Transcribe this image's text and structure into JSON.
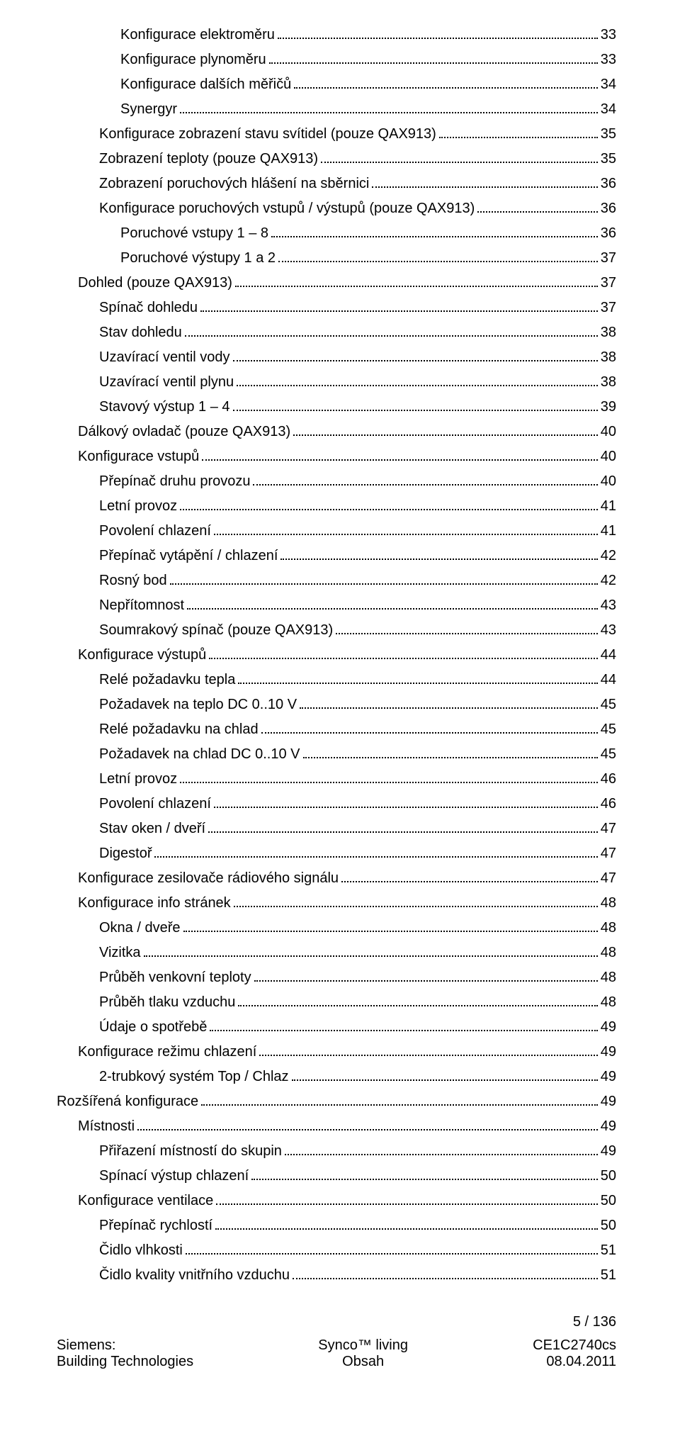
{
  "toc": [
    {
      "label": "Konfigurace elektroměru",
      "page": "33",
      "indent": 3
    },
    {
      "label": "Konfigurace plynoměru",
      "page": "33",
      "indent": 3
    },
    {
      "label": "Konfigurace dalších měřičů",
      "page": "34",
      "indent": 3
    },
    {
      "label": "Synergyr",
      "page": "34",
      "indent": 3
    },
    {
      "label": "Konfigurace zobrazení stavu svítidel (pouze QAX913)",
      "page": "35",
      "indent": 2
    },
    {
      "label": "Zobrazení teploty (pouze QAX913)",
      "page": "35",
      "indent": 2
    },
    {
      "label": "Zobrazení poruchových hlášení na sběrnici",
      "page": "36",
      "indent": 2
    },
    {
      "label": "Konfigurace poruchových vstupů / výstupů (pouze QAX913)",
      "page": "36",
      "indent": 2
    },
    {
      "label": "Poruchové vstupy 1 – 8",
      "page": "36",
      "indent": 3
    },
    {
      "label": "Poruchové výstupy 1 a 2",
      "page": "37",
      "indent": 3
    },
    {
      "label": "Dohled (pouze QAX913)",
      "page": "37",
      "indent": 1
    },
    {
      "label": "Spínač dohledu",
      "page": "37",
      "indent": 2
    },
    {
      "label": "Stav dohledu",
      "page": "38",
      "indent": 2
    },
    {
      "label": "Uzavírací ventil vody",
      "page": "38",
      "indent": 2
    },
    {
      "label": "Uzavírací ventil plynu",
      "page": "38",
      "indent": 2
    },
    {
      "label": "Stavový výstup 1 – 4",
      "page": "39",
      "indent": 2
    },
    {
      "label": "Dálkový ovladač (pouze QAX913)",
      "page": "40",
      "indent": 1
    },
    {
      "label": "Konfigurace vstupů",
      "page": "40",
      "indent": 1
    },
    {
      "label": "Přepínač druhu provozu",
      "page": "40",
      "indent": 2
    },
    {
      "label": "Letní provoz",
      "page": "41",
      "indent": 2
    },
    {
      "label": "Povolení chlazení",
      "page": "41",
      "indent": 2
    },
    {
      "label": "Přepínač vytápění / chlazení",
      "page": "42",
      "indent": 2
    },
    {
      "label": "Rosný bod",
      "page": "42",
      "indent": 2
    },
    {
      "label": "Nepřítomnost",
      "page": "43",
      "indent": 2
    },
    {
      "label": "Soumrakový spínač (pouze QAX913)",
      "page": "43",
      "indent": 2
    },
    {
      "label": "Konfigurace výstupů",
      "page": "44",
      "indent": 1
    },
    {
      "label": "Relé požadavku tepla",
      "page": "44",
      "indent": 2
    },
    {
      "label": "Požadavek na teplo DC 0..10 V",
      "page": "45",
      "indent": 2
    },
    {
      "label": "Relé požadavku na chlad",
      "page": "45",
      "indent": 2
    },
    {
      "label": "Požadavek na chlad DC 0..10 V",
      "page": "45",
      "indent": 2
    },
    {
      "label": "Letní provoz",
      "page": "46",
      "indent": 2
    },
    {
      "label": "Povolení chlazení",
      "page": "46",
      "indent": 2
    },
    {
      "label": "Stav oken / dveří",
      "page": "47",
      "indent": 2
    },
    {
      "label": "Digestoř",
      "page": "47",
      "indent": 2
    },
    {
      "label": "Konfigurace zesilovače rádiového signálu",
      "page": "47",
      "indent": 1
    },
    {
      "label": "Konfigurace info stránek",
      "page": "48",
      "indent": 1
    },
    {
      "label": "Okna / dveře",
      "page": "48",
      "indent": 2
    },
    {
      "label": "Vizitka",
      "page": "48",
      "indent": 2
    },
    {
      "label": "Průběh venkovní teploty",
      "page": "48",
      "indent": 2
    },
    {
      "label": "Průběh tlaku vzduchu",
      "page": "48",
      "indent": 2
    },
    {
      "label": "Údaje o spotřebě",
      "page": "49",
      "indent": 2
    },
    {
      "label": "Konfigurace režimu chlazení",
      "page": "49",
      "indent": 1
    },
    {
      "label": "2-trubkový systém Top / Chlaz",
      "page": "49",
      "indent": 2
    },
    {
      "label": "Rozšířená konfigurace",
      "page": "49",
      "indent": 0
    },
    {
      "label": "Místnosti",
      "page": "49",
      "indent": 1
    },
    {
      "label": "Přiřazení místností do skupin",
      "page": "49",
      "indent": 2
    },
    {
      "label": "Spínací výstup chlazení",
      "page": "50",
      "indent": 2
    },
    {
      "label": "Konfigurace ventilace",
      "page": "50",
      "indent": 1
    },
    {
      "label": "Přepínač rychlostí",
      "page": "50",
      "indent": 2
    },
    {
      "label": "Čidlo vlhkosti",
      "page": "51",
      "indent": 2
    },
    {
      "label": "Čidlo kvality vnitřního vzduchu",
      "page": "51",
      "indent": 2
    }
  ],
  "page_number": "5 / 136",
  "footer": {
    "left_top": "Siemens:",
    "left_bottom": "Building Technologies",
    "center_top": "Synco™ living",
    "center_bottom": "Obsah",
    "right_top": "CE1C2740cs",
    "right_bottom": "08.04.2011"
  }
}
